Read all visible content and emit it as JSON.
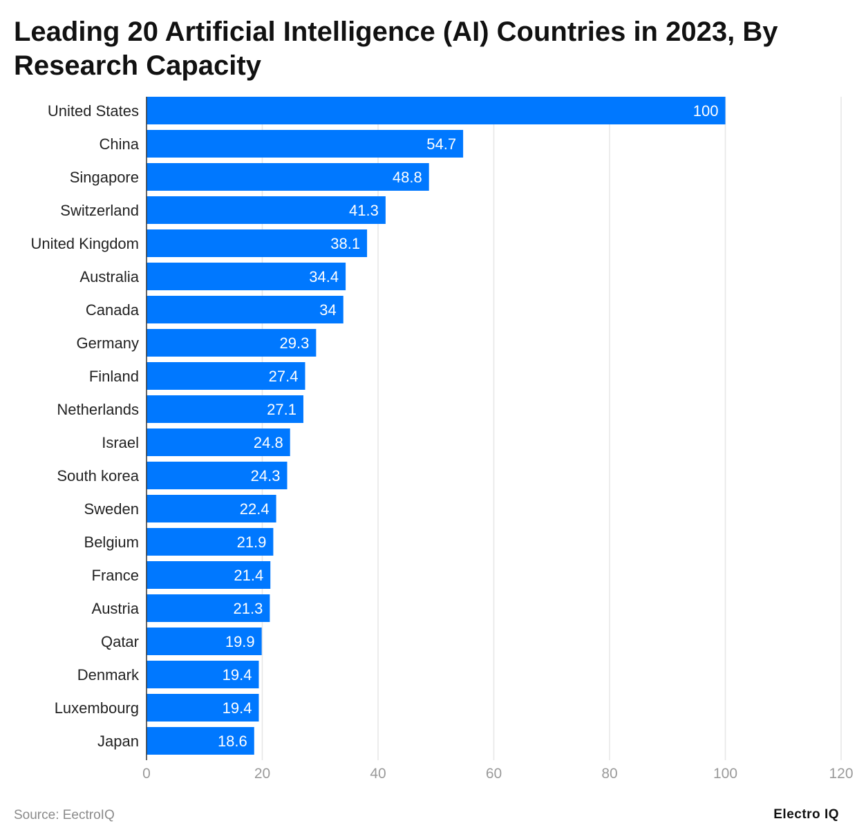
{
  "chart_data": {
    "type": "bar",
    "orientation": "horizontal",
    "title": "Leading 20 Artificial Intelligence (AI) Countries in 2023, By Research Capacity",
    "categories": [
      "United States",
      "China",
      "Singapore",
      "Switzerland",
      "United Kingdom",
      "Australia",
      "Canada",
      "Germany",
      "Finland",
      "Netherlands",
      "Israel",
      "South korea",
      "Sweden",
      "Belgium",
      "France",
      "Austria",
      "Qatar",
      "Denmark",
      "Luxembourg",
      "Japan"
    ],
    "values": [
      100,
      54.7,
      48.8,
      41.3,
      38.1,
      34.4,
      34,
      29.3,
      27.4,
      27.1,
      24.8,
      24.3,
      22.4,
      21.9,
      21.4,
      21.3,
      19.9,
      19.4,
      19.4,
      18.6
    ],
    "value_labels": [
      "100",
      "54.7",
      "48.8",
      "41.3",
      "38.1",
      "34.4",
      "34",
      "29.3",
      "27.4",
      "27.1",
      "24.8",
      "24.3",
      "22.4",
      "21.9",
      "21.4",
      "21.3",
      "19.9",
      "19.4",
      "19.4",
      "18.6"
    ],
    "xlim": [
      0,
      120
    ],
    "xticks": [
      0,
      20,
      40,
      60,
      80,
      100,
      120
    ],
    "xtick_labels": [
      "0",
      "20",
      "40",
      "60",
      "80",
      "100",
      "120"
    ],
    "grid": true,
    "bar_color": "#0078ff",
    "grid_color": "#e6e6e6"
  },
  "footer": {
    "source": "Source: EectroIQ",
    "brand": "Electro IQ"
  }
}
